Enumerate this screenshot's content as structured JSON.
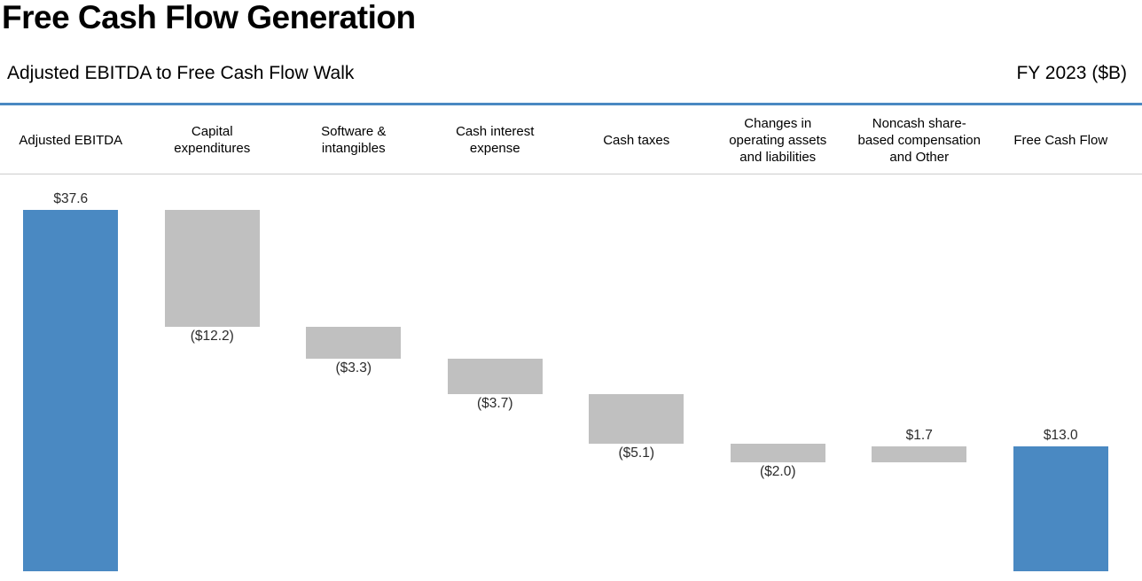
{
  "header": {
    "title": "Free Cash Flow Generation",
    "subtitle": "Adjusted EBITDA to Free Cash Flow Walk",
    "period": "FY 2023 ($B)"
  },
  "colors": {
    "total_bar": "#4a89c2",
    "flow_bar": "#c0c0c0",
    "accent_rule": "#4a89c2",
    "header_rule": "#cccccc",
    "value_label": "#2b2b2b",
    "text": "#000000"
  },
  "chart_data": {
    "type": "bar",
    "subtype": "waterfall",
    "title": "Adjusted EBITDA to Free Cash Flow Walk",
    "period": "FY 2023",
    "unit": "$B",
    "ylim": [
      0,
      37.6
    ],
    "grid": false,
    "legend": false,
    "categories": [
      "Adjusted EBITDA",
      "Capital expenditures",
      "Software & intangibles",
      "Cash interest expense",
      "Cash taxes",
      "Changes in operating assets and liabilities",
      "Noncash share-based compensation and Other",
      "Free Cash Flow"
    ],
    "values": [
      37.6,
      -12.2,
      -3.3,
      -3.7,
      -5.1,
      -2.0,
      1.7,
      13.0
    ],
    "bars": [
      {
        "category": "Adjusted EBITDA",
        "label_lines": [
          "Adjusted EBITDA"
        ],
        "value": 37.6,
        "start": 0,
        "end": 37.6,
        "kind": "total",
        "value_label": "$37.6",
        "value_label_position": "above"
      },
      {
        "category": "Capital expenditures",
        "label_lines": [
          "Capital",
          "expenditures"
        ],
        "value": -12.2,
        "start": 37.6,
        "end": 25.4,
        "kind": "decrease",
        "value_label": "($12.2)",
        "value_label_position": "below"
      },
      {
        "category": "Software & intangibles",
        "label_lines": [
          "Software &",
          "intangibles"
        ],
        "value": -3.3,
        "start": 25.4,
        "end": 22.1,
        "kind": "decrease",
        "value_label": "($3.3)",
        "value_label_position": "below"
      },
      {
        "category": "Cash interest expense",
        "label_lines": [
          "Cash interest",
          "expense"
        ],
        "value": -3.7,
        "start": 22.1,
        "end": 18.4,
        "kind": "decrease",
        "value_label": "($3.7)",
        "value_label_position": "below"
      },
      {
        "category": "Cash taxes",
        "label_lines": [
          "Cash taxes"
        ],
        "value": -5.1,
        "start": 18.4,
        "end": 13.3,
        "kind": "decrease",
        "value_label": "($5.1)",
        "value_label_position": "below"
      },
      {
        "category": "Changes in operating assets and liabilities",
        "label_lines": [
          "Changes in",
          "operating assets",
          "and liabilities"
        ],
        "value": -2.0,
        "start": 13.3,
        "end": 11.3,
        "kind": "decrease",
        "value_label": "($2.0)",
        "value_label_position": "below"
      },
      {
        "category": "Noncash share-based compensation and Other",
        "label_lines": [
          "Noncash share-",
          "based compensation",
          "and Other"
        ],
        "value": 1.7,
        "start": 11.3,
        "end": 13.0,
        "kind": "increase",
        "value_label": "$1.7",
        "value_label_position": "above"
      },
      {
        "category": "Free Cash Flow",
        "label_lines": [
          "Free Cash Flow"
        ],
        "value": 13.0,
        "start": 0,
        "end": 13.0,
        "kind": "total",
        "value_label": "$13.0",
        "value_label_position": "above"
      }
    ]
  }
}
